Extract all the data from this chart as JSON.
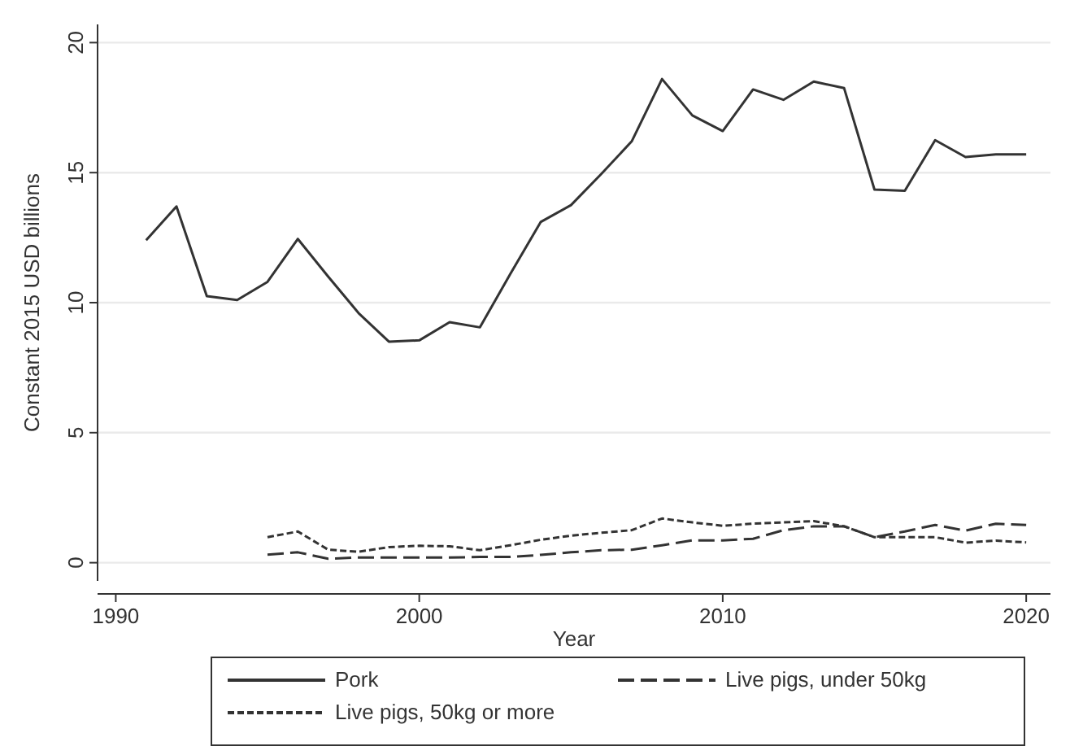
{
  "chart_data": {
    "type": "line",
    "xlabel": "Year",
    "ylabel": "Constant 2015 USD billions",
    "xlim": [
      1989.4,
      2020.8
    ],
    "xticks": [
      1990,
      2000,
      2010,
      2020
    ],
    "ylim": [
      -0.7,
      20.7
    ],
    "yticks": [
      0,
      5,
      10,
      15,
      20
    ],
    "grid": "y",
    "legend": "bottom",
    "marker": "none",
    "series": [
      {
        "name": "Pork",
        "color": "#333333",
        "line_style": "solid",
        "x": [
          1991,
          1992,
          1993,
          1994,
          1995,
          1996,
          1997,
          1998,
          1999,
          2000,
          2001,
          2002,
          2003,
          2004,
          2005,
          2006,
          2007,
          2008,
          2009,
          2010,
          2011,
          2012,
          2013,
          2014,
          2015,
          2016,
          2017,
          2018,
          2019,
          2020
        ],
        "values": [
          12.4,
          13.7,
          10.25,
          10.1,
          10.8,
          12.45,
          11.0,
          9.6,
          8.5,
          8.55,
          9.25,
          9.05,
          11.1,
          13.1,
          13.75,
          14.95,
          16.2,
          18.6,
          17.2,
          16.6,
          18.2,
          17.8,
          18.5,
          18.25,
          14.35,
          14.3,
          16.25,
          15.6,
          15.7,
          15.7
        ]
      },
      {
        "name": "Live pigs, under 50kg",
        "color": "#333333",
        "line_style": "longdash",
        "x": [
          1995,
          1996,
          1997,
          1998,
          1999,
          2000,
          2001,
          2002,
          2003,
          2004,
          2005,
          2006,
          2007,
          2008,
          2009,
          2010,
          2011,
          2012,
          2013,
          2014,
          2015,
          2016,
          2017,
          2018,
          2019,
          2020
        ],
        "values": [
          0.31,
          0.4,
          0.15,
          0.2,
          0.2,
          0.2,
          0.2,
          0.22,
          0.22,
          0.3,
          0.4,
          0.48,
          0.5,
          0.67,
          0.86,
          0.86,
          0.92,
          1.25,
          1.4,
          1.4,
          0.98,
          1.2,
          1.45,
          1.23,
          1.5,
          1.45
        ]
      },
      {
        "name": "Live pigs, 50kg or more",
        "color": "#333333",
        "line_style": "dashed",
        "x": [
          1995,
          1996,
          1997,
          1998,
          1999,
          2000,
          2001,
          2002,
          2003,
          2004,
          2005,
          2006,
          2007,
          2008,
          2009,
          2010,
          2011,
          2012,
          2013,
          2014,
          2015,
          2016,
          2017,
          2018,
          2019,
          2020
        ],
        "values": [
          0.98,
          1.2,
          0.5,
          0.42,
          0.6,
          0.65,
          0.63,
          0.48,
          0.67,
          0.88,
          1.04,
          1.15,
          1.25,
          1.7,
          1.55,
          1.42,
          1.5,
          1.55,
          1.6,
          1.4,
          0.98,
          0.98,
          0.98,
          0.77,
          0.85,
          0.78
        ]
      }
    ]
  }
}
